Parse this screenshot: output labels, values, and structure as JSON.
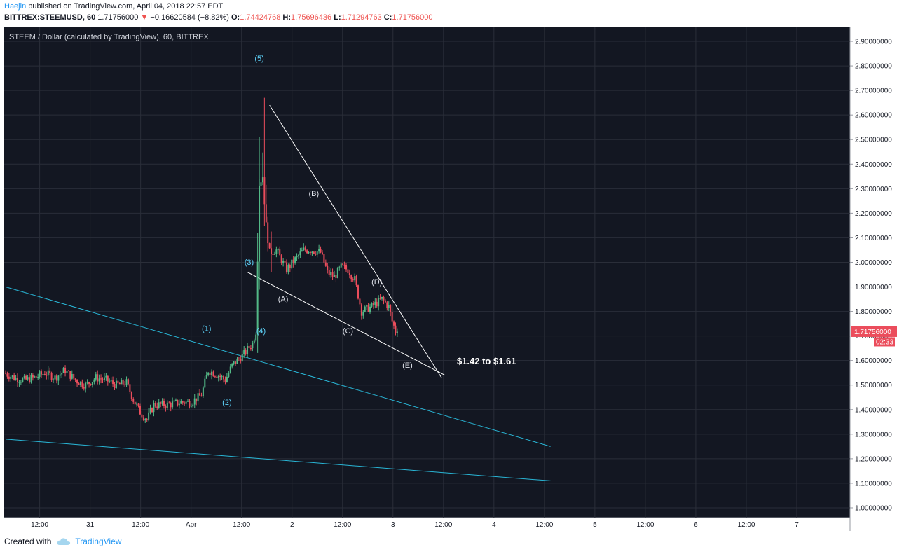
{
  "header": {
    "author": "Haejin",
    "published": " published on TradingView.com, April 04, 2018 22:57 EDT",
    "symbol": "BITTREX:STEEMUSD, 60",
    "last": "1.71756000",
    "change": "−0.16620584 (−8.82%)",
    "o_label": "O:",
    "o": "1.74424768",
    "h_label": "H:",
    "h": "1.75696436",
    "l_label": "L:",
    "l": "1.71294763",
    "c_label": "C:",
    "c": "1.71756000"
  },
  "chart_title": "STEEM / Dollar (calculated by TradingView), 60, BITTREX",
  "footer": {
    "created_with": "Created with",
    "brand": "TradingView"
  },
  "colors": {
    "background": "#131722",
    "grid": "#2a2e39",
    "bull": "#53b987",
    "bear": "#eb4d5c",
    "trend_white": "#ffffff",
    "trend_cyan": "#29b6d6",
    "wave_label": "#5fd7ff",
    "price_tag": "#eb4d5c",
    "axis_text": "#131722"
  },
  "chart_data": {
    "type": "candlestick",
    "timeframe": "60",
    "x_tick_labels": [
      "12:00",
      "31",
      "12:00",
      "Apr",
      "12:00",
      "2",
      "12:00",
      "3",
      "12:00",
      "4",
      "12:00",
      "5",
      "12:00",
      "6",
      "12:00",
      "7"
    ],
    "y_tick_labels": [
      "2.90000000",
      "2.80000000",
      "2.70000000",
      "2.60000000",
      "2.50000000",
      "2.40000000",
      "2.30000000",
      "2.20000000",
      "2.10000000",
      "2.00000000",
      "1.90000000",
      "1.80000000",
      "1.70000000",
      "1.60000000",
      "1.50000000",
      "1.40000000",
      "1.30000000",
      "1.20000000",
      "1.10000000",
      "1.00000000"
    ],
    "ylim": [
      0.96,
      2.96
    ],
    "last_price_label": "1.71756000",
    "countdown_label": "02:33",
    "candle_anchors_hour_price": [
      [
        0,
        1.55
      ],
      [
        6,
        1.53
      ],
      [
        12,
        1.52
      ],
      [
        18,
        1.53
      ],
      [
        24,
        1.55
      ],
      [
        30,
        1.53
      ],
      [
        36,
        1.56
      ],
      [
        42,
        1.52
      ],
      [
        48,
        1.5
      ],
      [
        54,
        1.53
      ],
      [
        60,
        1.52
      ],
      [
        66,
        1.5
      ],
      [
        72,
        1.51
      ],
      [
        76,
        1.44
      ],
      [
        80,
        1.39
      ],
      [
        84,
        1.36
      ],
      [
        88,
        1.42
      ],
      [
        96,
        1.42
      ],
      [
        104,
        1.43
      ],
      [
        110,
        1.43
      ],
      [
        116,
        1.46
      ],
      [
        120,
        1.56
      ],
      [
        126,
        1.54
      ],
      [
        130,
        1.52
      ],
      [
        134,
        1.58
      ],
      [
        140,
        1.62
      ],
      [
        146,
        1.67
      ],
      [
        148,
        1.72
      ],
      [
        150,
        2.32
      ],
      [
        152,
        2.35
      ],
      [
        154,
        2.15
      ],
      [
        156,
        2.04
      ],
      [
        160,
        2.05
      ],
      [
        166,
        1.97
      ],
      [
        172,
        2.02
      ],
      [
        176,
        2.05
      ],
      [
        180,
        2.05
      ],
      [
        186,
        2.04
      ],
      [
        190,
        1.96
      ],
      [
        194,
        1.94
      ],
      [
        198,
        1.98
      ],
      [
        202,
        1.97
      ],
      [
        206,
        1.93
      ],
      [
        210,
        1.8
      ],
      [
        216,
        1.82
      ],
      [
        222,
        1.85
      ],
      [
        226,
        1.82
      ],
      [
        228,
        1.76
      ],
      [
        230,
        1.72
      ]
    ],
    "wave_labels": [
      {
        "text": "(1)",
        "hour": 118,
        "price": 1.72,
        "color": "cyan"
      },
      {
        "text": "(2)",
        "hour": 130,
        "price": 1.42,
        "color": "cyan"
      },
      {
        "text": "(3)",
        "hour": 143,
        "price": 1.99,
        "color": "cyan"
      },
      {
        "text": "(4)",
        "hour": 150,
        "price": 1.71,
        "color": "cyan"
      },
      {
        "text": "(5)",
        "hour": 149,
        "price": 2.82,
        "color": "cyan"
      },
      {
        "text": "(A)",
        "hour": 163,
        "price": 1.84,
        "color": "white"
      },
      {
        "text": "(B)",
        "hour": 181,
        "price": 2.27,
        "color": "white"
      },
      {
        "text": "(C)",
        "hour": 201,
        "price": 1.71,
        "color": "white"
      },
      {
        "text": "(D)",
        "hour": 218,
        "price": 1.91,
        "color": "white"
      },
      {
        "text": "(E)",
        "hour": 236,
        "price": 1.57,
        "color": "white"
      }
    ],
    "trendlines": [
      {
        "name": "upper-wedge",
        "color": "white",
        "from": [
          155,
          2.64
        ],
        "to": [
          256,
          1.53
        ]
      },
      {
        "name": "lower-wedge",
        "color": "white",
        "from": [
          142,
          1.96
        ],
        "to": [
          258,
          1.54
        ]
      },
      {
        "name": "cyan-upper",
        "color": "cyan",
        "from": [
          0,
          1.9
        ],
        "to": [
          320,
          1.25
        ]
      },
      {
        "name": "cyan-lower",
        "color": "cyan",
        "from": [
          0,
          1.28
        ],
        "to": [
          320,
          1.11
        ]
      }
    ],
    "annotation": {
      "text": "$1.42 to $1.61",
      "hour": 265,
      "price": 1.585
    }
  }
}
